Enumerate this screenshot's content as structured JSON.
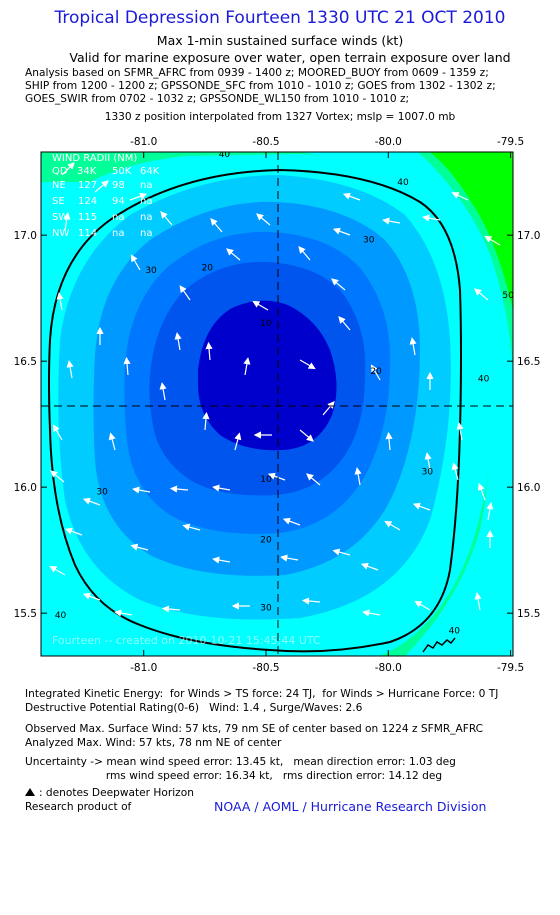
{
  "header": {
    "title": "Tropical Depression Fourteen 1330 UTC 21 OCT 2010",
    "subtitle1": "Max 1-min sustained surface winds (kt)",
    "subtitle2": "Valid for marine exposure over water, open terrain exposure over land",
    "analysis_lines": [
      "Analysis based on SFMR_AFRC from 0939 - 1400 z; MOORED_BUOY from 0609 - 1359 z;",
      "SHIP from 1200 - 1200 z; GPSSONDE_SFC from 1010 - 1010 z; GOES from 1302 - 1302 z;",
      "GOES_SWIR from 0702 - 1032 z; GPSSONDE_WL150 from 1010 - 1010 z;"
    ],
    "interp_line": "1330 z position interpolated from 1327 Vortex; mslp = 1007.0 mb"
  },
  "chart_data": {
    "type": "contour",
    "x_tick_labels": [
      "-81.0",
      "-80.5",
      "-80.0",
      "-79.5"
    ],
    "x_ticks": [
      -81.0,
      -80.5,
      -80.0,
      -79.5
    ],
    "y_tick_labels": [
      "17.0",
      "16.5",
      "16.0",
      "15.5"
    ],
    "y_ticks": [
      17.0,
      16.5,
      16.0,
      15.5
    ],
    "xlim": [
      -81.42,
      -79.49
    ],
    "ylim": [
      15.33,
      17.33
    ],
    "center": {
      "lon": -80.5,
      "lat": 16.32
    },
    "contour_levels": [
      10,
      20,
      30,
      34,
      40,
      50
    ],
    "contour_labels": [
      {
        "text": "10",
        "lon": -80.5,
        "lat": 16.64
      },
      {
        "text": "10",
        "lon": -80.5,
        "lat": 16.02
      },
      {
        "text": "20",
        "lon": -80.74,
        "lat": 16.86
      },
      {
        "text": "20",
        "lon": -80.05,
        "lat": 16.45
      },
      {
        "text": "20",
        "lon": -80.5,
        "lat": 15.78
      },
      {
        "text": "30",
        "lon": -80.97,
        "lat": 16.85
      },
      {
        "text": "30",
        "lon": -80.08,
        "lat": 16.97
      },
      {
        "text": "30",
        "lon": -81.17,
        "lat": 15.97
      },
      {
        "text": "30",
        "lon": -80.5,
        "lat": 15.51
      },
      {
        "text": "30",
        "lon": -79.84,
        "lat": 16.05
      },
      {
        "text": "40",
        "lon": -79.94,
        "lat": 17.2
      },
      {
        "text": "40",
        "lon": -79.61,
        "lat": 16.42
      },
      {
        "text": "40",
        "lon": -79.73,
        "lat": 15.42
      },
      {
        "text": "40",
        "lon": -81.34,
        "lat": 15.48
      },
      {
        "text": "40",
        "lon": -80.67,
        "lat": 17.31
      },
      {
        "text": "50",
        "lon": -79.51,
        "lat": 16.75
      }
    ],
    "wind_radii": {
      "title": "WIND RADII (NM)",
      "header": [
        "QD",
        "34K",
        "50K",
        "64K"
      ],
      "rows": [
        [
          "NE",
          "127",
          "98",
          "na"
        ],
        [
          "SE",
          "124",
          "94",
          "na"
        ],
        [
          "SW",
          "115",
          "na",
          "na"
        ],
        [
          "NW",
          "114",
          "na",
          "na"
        ]
      ]
    },
    "watermark": "Fourteen -- created on 2010-10-21 15:45:44 UTC",
    "colors": {
      "gt50": "#00ff00",
      "40_50": "#00ff99",
      "30_40": "#00ffff",
      "20_30": "#00ccff",
      "10_20": "#0099ff",
      "lt10": "#0000cc",
      "34kt_line": "#000000"
    }
  },
  "footer": {
    "ike_line": "Integrated Kinetic Energy:  for Winds > TS force: 24 TJ,  for Winds > Hurricane Force: 0 TJ",
    "dpr_line": "Destructive Potential Rating(0-6)   Wind: 1.4 , Surge/Waves: 2.6",
    "obs_line": "Observed Max. Surface Wind: 57 kts, 79 nm SE of center based on 1224 z SFMR_AFRC",
    "analyzed_line": "Analyzed Max. Wind: 57 kts, 78 nm NE of center",
    "uncert_line1": "Uncertainty -> mean wind speed error: 13.45 kt,   mean direction error: 1.03 deg",
    "uncert_line2": "                        rms wind speed error: 16.34 kt,   rms direction error: 14.12 deg",
    "deepwater_line": ": denotes Deepwater Horizon",
    "research_line": "Research product of",
    "credit": "NOAA / AOML / Hurricane Research Division"
  }
}
